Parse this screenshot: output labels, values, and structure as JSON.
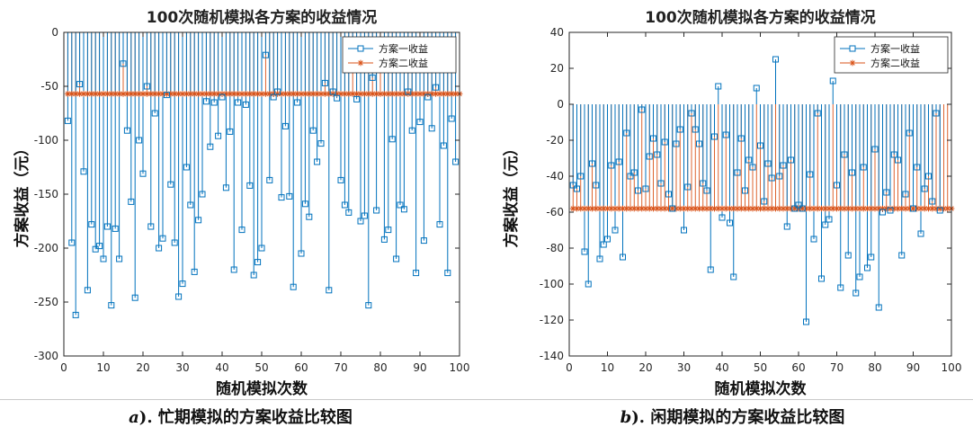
{
  "colors": {
    "series1": "#0072BD",
    "series2": "#D95319",
    "axis": "#262626"
  },
  "captions": {
    "a_prefix": "a",
    "a_text": "). 忙期模拟的方案收益比较图",
    "b_prefix": "b",
    "b_text": "). 闲期模拟的方案收益比较图"
  },
  "chart_data": [
    {
      "type": "stem",
      "title": "100次随机模拟各方案的收益情况",
      "xlabel": "随机模拟次数",
      "ylabel": "方案收益（元）",
      "xlim": [
        0,
        100
      ],
      "ylim": [
        -300,
        0
      ],
      "xticks": [
        0,
        10,
        20,
        30,
        40,
        50,
        60,
        70,
        80,
        90,
        100
      ],
      "yticks": [
        0,
        -50,
        -100,
        -150,
        -200,
        -250,
        -300
      ],
      "legend_position": "top-right",
      "series": [
        {
          "name": "方案一收益",
          "marker": "square",
          "color": "#0072BD",
          "values": [
            -82,
            -195,
            -262,
            -48,
            -129,
            -239,
            -178,
            -201,
            -198,
            -210,
            -180,
            -253,
            -182,
            -210,
            -29,
            -91,
            -157,
            -246,
            -100,
            -131,
            -50,
            -180,
            -75,
            -200,
            -191,
            -58,
            -141,
            -195,
            -245,
            -233,
            -125,
            -160,
            -222,
            -174,
            -150,
            -64,
            -106,
            -65,
            -96,
            -60,
            -144,
            -92,
            -220,
            -65,
            -183,
            -67,
            -142,
            -225,
            -213,
            -200,
            -21,
            -137,
            -60,
            -55,
            -153,
            -87,
            -152,
            -236,
            -65,
            -205,
            -159,
            -171,
            -91,
            -120,
            -103,
            -47,
            -239,
            -55,
            -61,
            -137,
            -160,
            -167,
            -30,
            -62,
            -175,
            -170,
            -253,
            -42,
            -165,
            -8,
            -192,
            -183,
            -99,
            -210,
            -160,
            -164,
            -55,
            -91,
            -223,
            -83,
            -193,
            -60,
            -89,
            -51,
            -178,
            -105,
            -223,
            -80,
            -120
          ]
        },
        {
          "name": "方案二收益",
          "marker": "star",
          "color": "#D95319",
          "value": -57
        }
      ]
    },
    {
      "type": "stem",
      "title": "100次随机模拟各方案的收益情况",
      "xlabel": "随机模拟次数",
      "ylabel": "方案收益（元）",
      "xlim": [
        0,
        100
      ],
      "ylim": [
        -140,
        40
      ],
      "xticks": [
        0,
        10,
        20,
        30,
        40,
        50,
        60,
        70,
        80,
        90,
        100
      ],
      "yticks": [
        40,
        20,
        0,
        -20,
        -40,
        -60,
        -80,
        -100,
        -120,
        -140
      ],
      "legend_position": "top-right",
      "series": [
        {
          "name": "方案一收益",
          "marker": "square",
          "color": "#0072BD",
          "values": [
            -45,
            -47,
            -40,
            -82,
            -100,
            -33,
            -45,
            -86,
            -78,
            -75,
            -34,
            -70,
            -32,
            -85,
            -16,
            -40,
            -38,
            -48,
            -3,
            -47,
            -29,
            -19,
            -28,
            -44,
            -21,
            -50,
            -58,
            -22,
            -14,
            -70,
            -46,
            -5,
            -14,
            -22,
            -44,
            -48,
            -92,
            -18,
            10,
            -63,
            -17,
            -66,
            -96,
            -38,
            -19,
            -48,
            -31,
            -35,
            9,
            -23,
            -54,
            -33,
            -41,
            25,
            -40,
            -34,
            -68,
            -31,
            -58,
            -56,
            -58,
            -121,
            -39,
            -75,
            -5,
            -97,
            -67,
            -64,
            13,
            -45,
            -102,
            -28,
            -84,
            -38,
            -105,
            -96,
            -35,
            -91,
            -85,
            -25,
            -113,
            -60,
            -49,
            -59,
            -28,
            -31,
            -84,
            -50,
            -16,
            -58,
            -35,
            -72,
            -47,
            -40,
            -54,
            -5,
            -59
          ]
        },
        {
          "name": "方案二收益",
          "marker": "star",
          "color": "#D95319",
          "value": -58
        }
      ]
    }
  ]
}
